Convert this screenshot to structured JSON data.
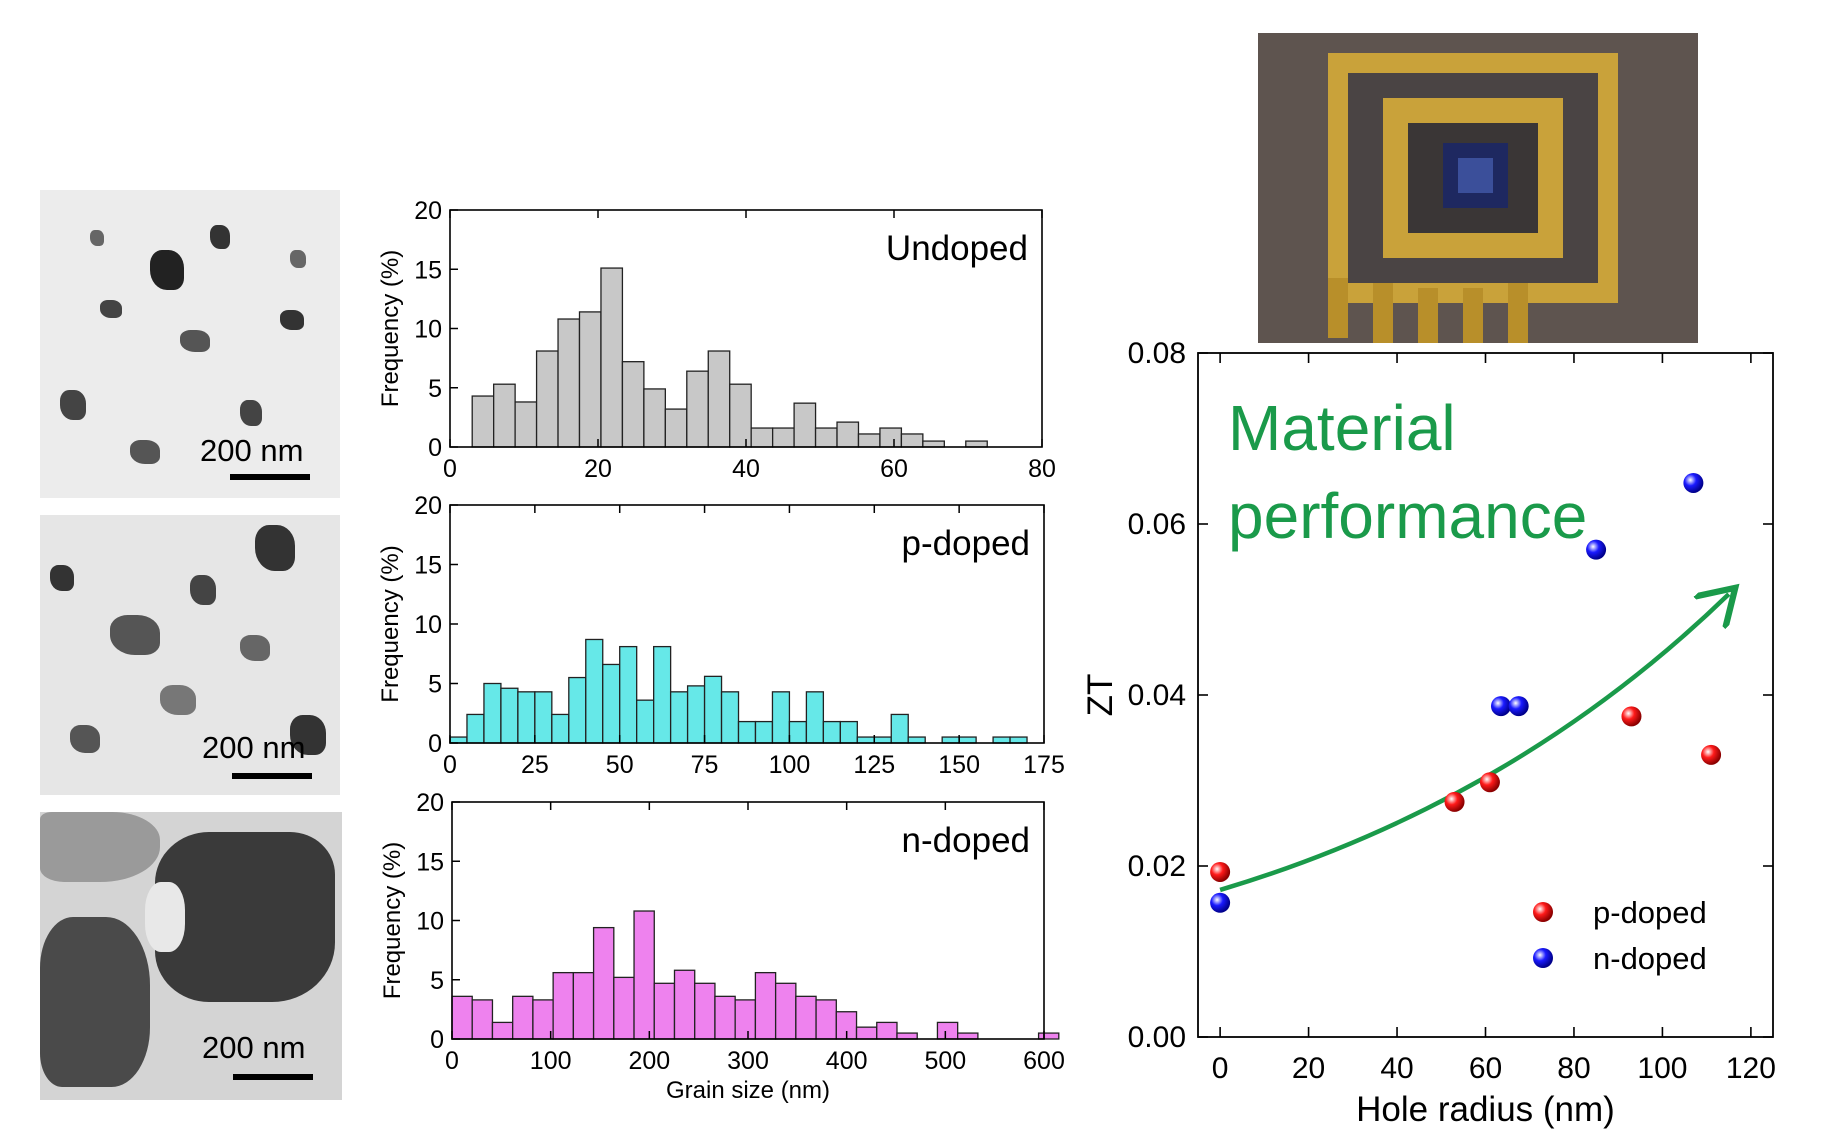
{
  "tem_images": [
    {
      "scale_label": "200 nm"
    },
    {
      "scale_label": "200 nm"
    },
    {
      "scale_label": "200 nm"
    }
  ],
  "chart_data": [
    {
      "type": "bar",
      "annotation": "Undoped",
      "ylabel": "Frequency (%)",
      "xlabel": "",
      "xlim": [
        0,
        80
      ],
      "ylim": [
        0,
        20
      ],
      "xticks": [
        0,
        20,
        40,
        60,
        80
      ],
      "yticks": [
        0,
        5,
        10,
        15,
        20
      ],
      "bin_width": 2.9,
      "bin_start": 3,
      "values": [
        4.3,
        5.3,
        3.8,
        8.1,
        10.8,
        11.4,
        15.1,
        7.2,
        4.9,
        3.2,
        6.4,
        8.1,
        5.3,
        1.6,
        1.6,
        3.7,
        1.6,
        2.1,
        1.1,
        1.6,
        1.1,
        0.5,
        0.0,
        0.5
      ],
      "color": "#c8c8c8"
    },
    {
      "type": "bar",
      "annotation": "p-doped",
      "ylabel": "Frequency (%)",
      "xlabel": "",
      "xlim": [
        0,
        175
      ],
      "ylim": [
        0,
        20
      ],
      "xticks": [
        0,
        25,
        50,
        75,
        100,
        125,
        150,
        175
      ],
      "yticks": [
        0,
        5,
        10,
        15,
        20
      ],
      "bin_width": 5,
      "bin_start": 0,
      "values": [
        0.5,
        2.4,
        5.0,
        4.6,
        4.3,
        4.3,
        2.4,
        5.5,
        8.7,
        6.6,
        8.1,
        3.6,
        8.1,
        4.3,
        4.8,
        5.6,
        4.3,
        1.8,
        1.8,
        4.3,
        1.8,
        4.3,
        1.8,
        1.8,
        0.5,
        0.5,
        2.4,
        0.5,
        0.0,
        0.5,
        0.5,
        0.0,
        0.5,
        0.5
      ],
      "color": "#66e8e8"
    },
    {
      "type": "bar",
      "annotation": "n-doped",
      "ylabel": "Frequency (%)",
      "xlabel": "Grain size (nm)",
      "xlim": [
        0,
        600
      ],
      "ylim": [
        0,
        20
      ],
      "xticks": [
        0,
        100,
        200,
        300,
        400,
        500,
        600
      ],
      "yticks": [
        0,
        5,
        10,
        15,
        20
      ],
      "bin_width": 20.5,
      "bin_start": 0,
      "values": [
        3.6,
        3.3,
        1.4,
        3.6,
        3.3,
        5.6,
        5.6,
        9.4,
        5.2,
        10.8,
        4.7,
        5.8,
        4.7,
        3.6,
        3.3,
        5.6,
        4.7,
        3.6,
        3.3,
        2.3,
        1.0,
        1.4,
        0.5,
        0.0,
        1.4,
        0.5,
        0.0,
        0.0,
        0.0,
        0.5
      ],
      "color": "#ee82ee"
    },
    {
      "type": "scatter",
      "annotation": "Material performance",
      "xlabel": "Hole radius (nm)",
      "ylabel": "ZT",
      "xlim": [
        -5,
        125
      ],
      "ylim": [
        0,
        0.08
      ],
      "xticks": [
        0,
        20,
        40,
        60,
        80,
        100,
        120
      ],
      "yticks": [
        0.0,
        0.02,
        0.04,
        0.06,
        0.08
      ],
      "series": [
        {
          "name": "p-doped",
          "color": "#ff1a1a",
          "x": [
            0,
            53,
            61,
            93,
            111
          ],
          "y": [
            0.0193,
            0.0275,
            0.0298,
            0.0375,
            0.033
          ]
        },
        {
          "name": "n-doped",
          "color": "#1a1aff",
          "x": [
            0,
            63.5,
            67.5,
            85,
            107
          ],
          "y": [
            0.0157,
            0.0387,
            0.0387,
            0.057,
            0.0648
          ]
        }
      ],
      "trend_arrow": {
        "color": "#1a9a4a",
        "x": [
          0,
          115
        ],
        "y": [
          0.0172,
          0.0518
        ]
      },
      "legend": "bottom-right"
    }
  ]
}
